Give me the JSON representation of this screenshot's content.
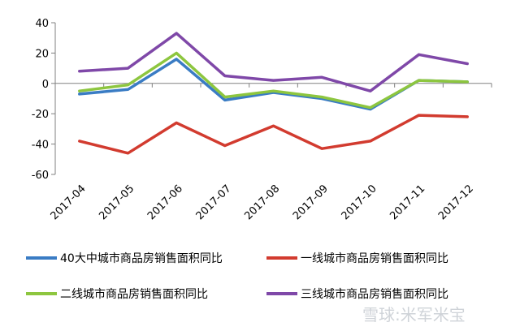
{
  "chart_data": {
    "type": "line",
    "categories": [
      "2017-04",
      "2017-05",
      "2017-06",
      "2017-07",
      "2017-08",
      "2017-09",
      "2017-10",
      "2017-11",
      "2017-12"
    ],
    "ylim": [
      -60,
      40
    ],
    "yticks": [
      40,
      20,
      0,
      -20,
      -40,
      -60
    ],
    "legend_position": "bottom",
    "series": [
      {
        "name": "40大中城市商品房销售面积同比",
        "color": "#3a7cc4",
        "values": [
          -7,
          -4,
          16,
          -11,
          -6,
          -10,
          -17,
          2,
          1
        ]
      },
      {
        "name": "一线城市商品房销售面积同比",
        "color": "#d23b2f",
        "values": [
          -38,
          -46,
          -26,
          -41,
          -28,
          -43,
          -38,
          -21,
          -22
        ]
      },
      {
        "name": "二线城市商品房销售面积同比",
        "color": "#8dc63f",
        "values": [
          -5,
          -1,
          20,
          -9,
          -5,
          -9,
          -16,
          2,
          1
        ]
      },
      {
        "name": "三线城市商品房销售面积同比",
        "color": "#7f48a8",
        "values": [
          8,
          10,
          33,
          5,
          2,
          4,
          -5,
          19,
          13
        ]
      }
    ]
  },
  "watermark": "雪球:米军米宝"
}
